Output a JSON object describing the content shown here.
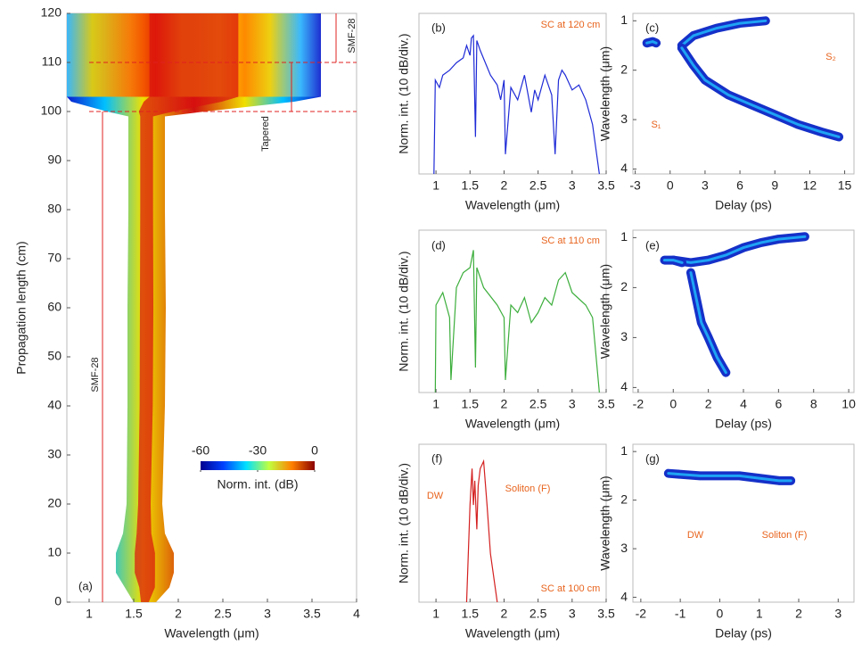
{
  "chart_data": [
    {
      "type": "evolution",
      "xlabel": "Wavelength (μm)",
      "ylabel": "Propagation length (cm)",
      "xlim": [
        0.75,
        4
      ],
      "xticks": [
        1,
        1.5,
        2,
        2.5,
        3,
        3.5,
        4
      ],
      "ylim": [
        0,
        120
      ],
      "yticks": [
        0,
        10,
        20,
        30,
        40,
        50,
        60,
        70,
        80,
        90,
        100,
        110,
        120
      ],
      "length": [
        0,
        3,
        6,
        10,
        14,
        20,
        40,
        60,
        80,
        99,
        100,
        102,
        103,
        120
      ],
      "left": [
        1.5,
        1.4,
        1.3,
        1.3,
        1.38,
        1.42,
        1.43,
        1.43,
        1.44,
        1.44,
        1.2,
        0.8,
        0.75,
        0.75
      ],
      "right": [
        1.75,
        1.9,
        1.95,
        1.95,
        1.85,
        1.82,
        1.85,
        1.86,
        1.85,
        1.85,
        2.3,
        3.3,
        3.6,
        3.6
      ],
      "colorbar": {
        "label": "Norm. int. (dB)",
        "ticks": [
          -60,
          -30,
          0
        ]
      },
      "annotations": [
        "(a)",
        "SMF-28",
        "Tapered",
        "SMF-28"
      ]
    },
    {
      "type": "line",
      "xlabel": "Wavelength (μm)",
      "ylabel": "Norm. int. (10 dB/div.)",
      "xlim": [
        0.75,
        3.5
      ],
      "xticks": [
        1,
        1.5,
        2,
        2.5,
        3,
        3.5
      ],
      "ylim": [
        -60,
        5
      ],
      "color": "#1f2bd6",
      "x": [
        0.97,
        0.99,
        1.05,
        1.1,
        1.2,
        1.3,
        1.4,
        1.45,
        1.5,
        1.52,
        1.55,
        1.58,
        1.6,
        1.65,
        1.8,
        1.9,
        1.95,
        2.0,
        2.02,
        2.1,
        2.2,
        2.3,
        2.4,
        2.45,
        2.5,
        2.6,
        2.7,
        2.75,
        2.8,
        2.85,
        2.9,
        3.0,
        3.1,
        3.2,
        3.3,
        3.35,
        3.4
      ],
      "values": [
        -60,
        -22,
        -25,
        -20,
        -18,
        -15,
        -13,
        -8,
        -12,
        -5,
        -4,
        -45,
        -6,
        -10,
        -20,
        -24,
        -30,
        -22,
        -52,
        -25,
        -30,
        -20,
        -35,
        -26,
        -30,
        -20,
        -28,
        -52,
        -22,
        -18,
        -20,
        -26,
        -24,
        -30,
        -40,
        -50,
        -60
      ],
      "annotations": [
        "(b)",
        "SC at 120 cm"
      ]
    },
    {
      "type": "spectrogram",
      "xlabel": "Delay (ps)",
      "ylabel": "Wavelength (μm)",
      "xlim": [
        -3.2,
        15.8
      ],
      "xticks": [
        -3,
        0,
        3,
        6,
        9,
        12,
        15
      ],
      "ylim": [
        4.1,
        0.85
      ],
      "yticks": [
        1,
        2,
        3,
        4
      ],
      "series": [
        {
          "color": "#1530c8",
          "x": [
            -2,
            -1.5,
            -1.2
          ],
          "y": [
            1.45,
            1.42,
            1.45
          ]
        },
        {
          "color": "#1530c8",
          "x": [
            1,
            2,
            4,
            6,
            8.2
          ],
          "y": [
            1.5,
            1.3,
            1.15,
            1.05,
            1.0
          ]
        },
        {
          "color": "#1530c8",
          "x": [
            1,
            2,
            3,
            5,
            7,
            9,
            11,
            13,
            14.5
          ],
          "y": [
            1.55,
            1.9,
            2.2,
            2.5,
            2.7,
            2.9,
            3.1,
            3.25,
            3.35
          ]
        }
      ],
      "annotations": [
        "(c)",
        "S₁",
        "S₂"
      ]
    },
    {
      "type": "line",
      "xlabel": "Wavelength (μm)",
      "ylabel": "Norm. int. (10 dB/div.)",
      "xlim": [
        0.75,
        3.5
      ],
      "xticks": [
        1,
        1.5,
        2,
        2.5,
        3,
        3.5
      ],
      "ylim": [
        -60,
        5
      ],
      "color": "#3cae3c",
      "x": [
        0.99,
        1.0,
        1.1,
        1.2,
        1.22,
        1.3,
        1.4,
        1.5,
        1.55,
        1.58,
        1.6,
        1.7,
        1.9,
        2.0,
        2.02,
        2.1,
        2.2,
        2.3,
        2.4,
        2.5,
        2.6,
        2.7,
        2.8,
        2.9,
        3.0,
        3.2,
        3.3,
        3.4
      ],
      "values": [
        -60,
        -25,
        -20,
        -30,
        -55,
        -18,
        -12,
        -10,
        -3,
        -50,
        -10,
        -18,
        -25,
        -30,
        -55,
        -25,
        -28,
        -22,
        -32,
        -28,
        -22,
        -25,
        -15,
        -12,
        -20,
        -25,
        -30,
        -60
      ],
      "annotations": [
        "(d)",
        "SC at 110 cm"
      ]
    },
    {
      "type": "spectrogram",
      "xlabel": "Delay (ps)",
      "ylabel": "Wavelength (μm)",
      "xlim": [
        -2.3,
        10.3
      ],
      "xticks": [
        -2,
        0,
        2,
        4,
        6,
        8,
        10
      ],
      "ylim": [
        4.1,
        0.85
      ],
      "yticks": [
        1,
        2,
        3,
        4
      ],
      "series": [
        {
          "color": "#1530c8",
          "x": [
            0,
            1,
            2,
            3,
            4,
            5,
            6,
            7.5
          ],
          "y": [
            1.45,
            1.5,
            1.45,
            1.35,
            1.2,
            1.1,
            1.03,
            0.98
          ]
        },
        {
          "color": "#1530c8",
          "x": [
            -0.5,
            0,
            0.5
          ],
          "y": [
            1.45,
            1.45,
            1.5
          ]
        },
        {
          "color": "#1530c8",
          "x": [
            1,
            1.3,
            1.6,
            2,
            2.5,
            3
          ],
          "y": [
            1.7,
            2.2,
            2.7,
            3.0,
            3.4,
            3.7
          ]
        }
      ],
      "annotations": [
        "(e)"
      ]
    },
    {
      "type": "line",
      "xlabel": "Wavelength (μm)",
      "ylabel": "Norm. int. (10 dB/div.)",
      "xlim": [
        0.75,
        3.5
      ],
      "xticks": [
        1,
        1.5,
        2,
        2.5,
        3,
        3.5
      ],
      "ylim": [
        -60,
        5
      ],
      "color": "#d42020",
      "x": [
        1.45,
        1.5,
        1.53,
        1.55,
        1.57,
        1.6,
        1.62,
        1.65,
        1.7,
        1.75,
        1.8,
        1.9
      ],
      "values": [
        -60,
        -20,
        -5,
        -20,
        -10,
        -30,
        -12,
        -5,
        -2,
        -20,
        -40,
        -60
      ],
      "annotations": [
        "(f)",
        "DW",
        "Soliton (F)",
        "SC at 100 cm"
      ]
    },
    {
      "type": "spectrogram",
      "xlabel": "Delay (ps)",
      "ylabel": "Wavelength (μm)",
      "xlim": [
        -2.2,
        3.4
      ],
      "xticks": [
        -2,
        -1,
        0,
        1,
        2,
        3
      ],
      "ylim": [
        4.1,
        0.85
      ],
      "yticks": [
        1,
        2,
        3,
        4
      ],
      "series": [
        {
          "color": "#1530c8",
          "x": [
            -1.3,
            -0.5,
            0,
            0.5,
            1,
            1.5,
            1.8
          ],
          "y": [
            1.45,
            1.5,
            1.5,
            1.5,
            1.55,
            1.6,
            1.6
          ]
        }
      ],
      "annotations": [
        "(g)",
        "DW",
        "Soliton (F)"
      ]
    }
  ]
}
